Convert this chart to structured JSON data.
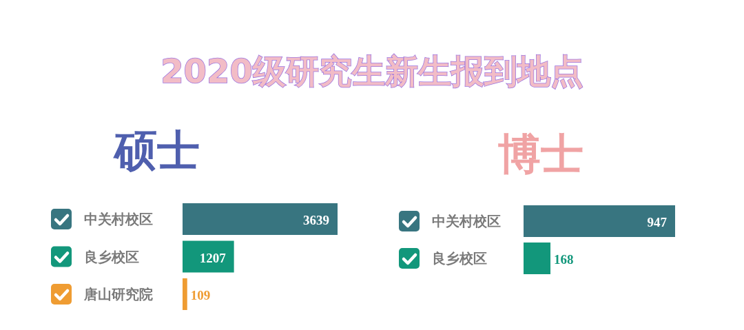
{
  "chart_data": [
    {
      "type": "bar",
      "orientation": "horizontal",
      "title": "2020级研究生新生报到地点",
      "subtitle": "硕士",
      "categories": [
        "中关村校区",
        "良乡校区",
        "唐山研究院"
      ],
      "values": [
        3639,
        1207,
        109
      ],
      "colors": [
        "#387580",
        "#12977b",
        "#ef9c32"
      ],
      "data_labels": true
    },
    {
      "type": "bar",
      "orientation": "horizontal",
      "subtitle": "博士",
      "categories": [
        "中关村校区",
        "良乡校区"
      ],
      "values": [
        947,
        168
      ],
      "colors": [
        "#387580",
        "#12977b"
      ],
      "data_labels": true
    }
  ]
}
